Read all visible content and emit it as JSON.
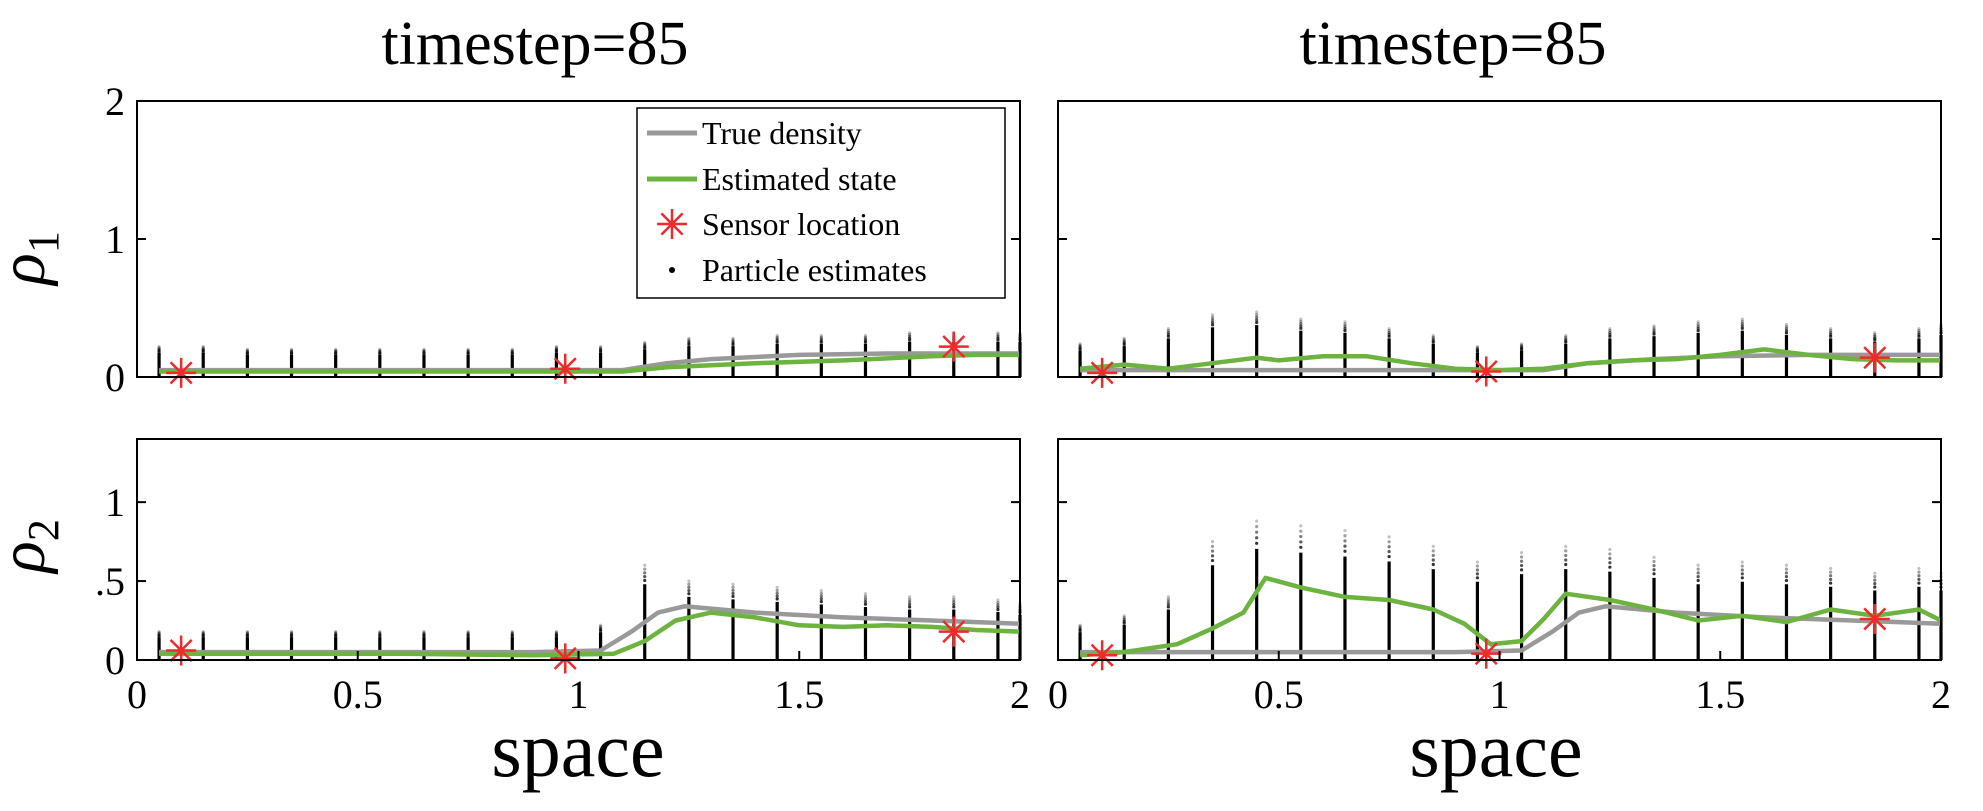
{
  "figure": {
    "col_titles": [
      "timestep=85",
      "timestep=85"
    ],
    "row_labels": [
      {
        "main": "ρ",
        "sub": "1"
      },
      {
        "main": "ρ",
        "sub": "2"
      }
    ],
    "xlabel": "space",
    "legend": {
      "entries": [
        {
          "label": "True density",
          "kind": "line",
          "color": "#999999"
        },
        {
          "label": "Estimated state",
          "kind": "line",
          "color": "#6db33f"
        },
        {
          "label": "Sensor location",
          "kind": "star",
          "color": "#ee2a2a"
        },
        {
          "label": "Particle estimates",
          "kind": "dot",
          "color": "#000000"
        }
      ]
    }
  },
  "chart_data": [
    {
      "type": "line",
      "panel": "top-left",
      "title": "timestep=85",
      "xlabel": "",
      "ylabel": "ρ1",
      "xlim": [
        0,
        2
      ],
      "ylim": [
        0,
        2
      ],
      "xticks": [],
      "yticks": [
        0,
        1,
        2
      ],
      "yticklabels": [
        "0",
        "1",
        "2"
      ],
      "legend_position": "top-right",
      "series": [
        {
          "name": "True density",
          "color": "#999999",
          "x": [
            0.05,
            0.3,
            0.6,
            0.9,
            1.1,
            1.2,
            1.3,
            1.5,
            1.7,
            1.85,
            2.0
          ],
          "y": [
            0.05,
            0.05,
            0.05,
            0.05,
            0.05,
            0.1,
            0.13,
            0.16,
            0.17,
            0.17,
            0.17
          ]
        },
        {
          "name": "Estimated state",
          "color": "#6db33f",
          "x": [
            0.05,
            0.3,
            0.6,
            0.9,
            1.1,
            1.2,
            1.4,
            1.6,
            1.8,
            1.9,
            2.0
          ],
          "y": [
            0.04,
            0.04,
            0.04,
            0.04,
            0.04,
            0.07,
            0.1,
            0.12,
            0.15,
            0.16,
            0.16
          ]
        }
      ],
      "sensors": [
        {
          "x": 0.1,
          "y": 0.03
        },
        {
          "x": 0.97,
          "y": 0.06
        },
        {
          "x": 1.85,
          "y": 0.22
        }
      ],
      "particles": {
        "x": [
          0.05,
          0.15,
          0.25,
          0.35,
          0.45,
          0.55,
          0.65,
          0.75,
          0.85,
          0.95,
          1.05,
          1.15,
          1.25,
          1.35,
          1.45,
          1.55,
          1.65,
          1.75,
          1.85,
          1.95,
          2.0
        ],
        "low": [
          0.0,
          0.0,
          0.0,
          0.0,
          0.0,
          0.0,
          0.0,
          0.0,
          0.0,
          0.0,
          0.0,
          0.0,
          0.0,
          0.0,
          0.0,
          0.0,
          0.0,
          0.0,
          0.0,
          0.0,
          0.0
        ],
        "high": [
          0.22,
          0.22,
          0.2,
          0.2,
          0.2,
          0.2,
          0.2,
          0.2,
          0.2,
          0.22,
          0.22,
          0.25,
          0.28,
          0.28,
          0.3,
          0.3,
          0.3,
          0.32,
          0.32,
          0.32,
          0.32
        ]
      }
    },
    {
      "type": "line",
      "panel": "top-right",
      "title": "timestep=85",
      "xlabel": "",
      "ylabel": "",
      "xlim": [
        0,
        2
      ],
      "ylim": [
        0,
        2
      ],
      "xticks": [],
      "yticks": [
        0,
        1,
        2
      ],
      "yticklabels": [],
      "series": [
        {
          "name": "True density",
          "color": "#999999",
          "x": [
            0.05,
            0.3,
            0.6,
            0.9,
            1.1,
            1.2,
            1.35,
            1.5,
            1.7,
            1.85,
            2.0
          ],
          "y": [
            0.05,
            0.05,
            0.05,
            0.05,
            0.05,
            0.1,
            0.13,
            0.15,
            0.16,
            0.16,
            0.16
          ]
        },
        {
          "name": "Estimated state",
          "color": "#6db33f",
          "x": [
            0.05,
            0.15,
            0.25,
            0.35,
            0.45,
            0.5,
            0.6,
            0.7,
            0.8,
            0.9,
            1.0,
            1.1,
            1.2,
            1.3,
            1.4,
            1.5,
            1.6,
            1.7,
            1.8,
            1.9,
            2.0
          ],
          "y": [
            0.06,
            0.09,
            0.06,
            0.1,
            0.14,
            0.12,
            0.15,
            0.15,
            0.1,
            0.06,
            0.05,
            0.06,
            0.1,
            0.12,
            0.13,
            0.16,
            0.2,
            0.16,
            0.13,
            0.12,
            0.12
          ]
        }
      ],
      "sensors": [
        {
          "x": 0.1,
          "y": 0.03
        },
        {
          "x": 0.97,
          "y": 0.04
        },
        {
          "x": 1.85,
          "y": 0.14
        }
      ],
      "particles": {
        "x": [
          0.05,
          0.15,
          0.25,
          0.35,
          0.45,
          0.55,
          0.65,
          0.75,
          0.85,
          0.95,
          1.05,
          1.15,
          1.25,
          1.35,
          1.45,
          1.55,
          1.65,
          1.75,
          1.85,
          1.95,
          2.0
        ],
        "low": [
          0.0,
          0.0,
          0.0,
          0.0,
          0.0,
          0.0,
          0.0,
          0.0,
          0.0,
          0.0,
          0.0,
          0.0,
          0.0,
          0.0,
          0.0,
          0.0,
          0.0,
          0.0,
          0.0,
          0.0,
          0.0
        ],
        "high": [
          0.24,
          0.28,
          0.35,
          0.45,
          0.47,
          0.42,
          0.4,
          0.35,
          0.3,
          0.22,
          0.24,
          0.3,
          0.35,
          0.37,
          0.4,
          0.42,
          0.38,
          0.35,
          0.32,
          0.35,
          0.38
        ]
      }
    },
    {
      "type": "line",
      "panel": "bottom-left",
      "title": "",
      "xlabel": "space",
      "ylabel": "ρ2",
      "xlim": [
        0,
        2
      ],
      "ylim": [
        0,
        1.4
      ],
      "xticks": [
        0,
        0.5,
        1,
        1.5,
        2
      ],
      "xticklabels": [
        "0",
        "0.5",
        "1",
        "1.5",
        "2"
      ],
      "yticks": [
        0,
        0.5,
        1
      ],
      "yticklabels": [
        "0",
        ".5",
        "1"
      ],
      "series": [
        {
          "name": "True density",
          "color": "#999999",
          "x": [
            0.05,
            0.3,
            0.6,
            0.9,
            1.05,
            1.12,
            1.18,
            1.24,
            1.4,
            1.6,
            1.8,
            2.0
          ],
          "y": [
            0.05,
            0.05,
            0.05,
            0.05,
            0.06,
            0.18,
            0.3,
            0.34,
            0.3,
            0.27,
            0.25,
            0.23
          ]
        },
        {
          "name": "Estimated state",
          "color": "#6db33f",
          "x": [
            0.05,
            0.3,
            0.6,
            0.9,
            1.08,
            1.15,
            1.22,
            1.3,
            1.4,
            1.5,
            1.6,
            1.7,
            1.8,
            1.9,
            2.0
          ],
          "y": [
            0.04,
            0.04,
            0.04,
            0.03,
            0.04,
            0.12,
            0.25,
            0.3,
            0.27,
            0.22,
            0.21,
            0.22,
            0.21,
            0.19,
            0.18
          ]
        }
      ],
      "sensors": [
        {
          "x": 0.1,
          "y": 0.06
        },
        {
          "x": 0.97,
          "y": 0.01
        },
        {
          "x": 1.85,
          "y": 0.18
        }
      ],
      "particles": {
        "x": [
          0.05,
          0.15,
          0.25,
          0.35,
          0.45,
          0.55,
          0.65,
          0.75,
          0.85,
          0.95,
          1.05,
          1.15,
          1.25,
          1.35,
          1.45,
          1.55,
          1.65,
          1.75,
          1.85,
          1.95,
          2.0
        ],
        "low": [
          0.0,
          0.0,
          0.0,
          0.0,
          0.0,
          0.0,
          0.0,
          0.0,
          0.0,
          0.0,
          0.0,
          0.0,
          0.0,
          0.0,
          0.0,
          0.0,
          0.0,
          0.0,
          0.0,
          0.0,
          0.0
        ],
        "high": [
          0.18,
          0.18,
          0.18,
          0.18,
          0.18,
          0.18,
          0.18,
          0.18,
          0.18,
          0.18,
          0.22,
          0.6,
          0.5,
          0.48,
          0.46,
          0.44,
          0.42,
          0.4,
          0.4,
          0.38,
          0.36
        ]
      }
    },
    {
      "type": "line",
      "panel": "bottom-right",
      "title": "",
      "xlabel": "space",
      "ylabel": "",
      "xlim": [
        0,
        2
      ],
      "ylim": [
        0,
        1.4
      ],
      "xticks": [
        0,
        0.5,
        1,
        1.5,
        2
      ],
      "xticklabels": [
        "0",
        "0.5",
        "1",
        "1.5",
        "2"
      ],
      "yticks": [
        0,
        0.5,
        1
      ],
      "yticklabels": [],
      "series": [
        {
          "name": "True density",
          "color": "#999999",
          "x": [
            0.05,
            0.3,
            0.6,
            0.9,
            1.05,
            1.12,
            1.18,
            1.24,
            1.4,
            1.6,
            1.8,
            2.0
          ],
          "y": [
            0.05,
            0.05,
            0.05,
            0.05,
            0.06,
            0.18,
            0.3,
            0.34,
            0.3,
            0.27,
            0.25,
            0.23
          ]
        },
        {
          "name": "Estimated state",
          "color": "#6db33f",
          "x": [
            0.05,
            0.15,
            0.27,
            0.35,
            0.42,
            0.47,
            0.55,
            0.65,
            0.75,
            0.85,
            0.92,
            0.98,
            1.05,
            1.1,
            1.15,
            1.25,
            1.35,
            1.45,
            1.55,
            1.65,
            1.75,
            1.85,
            1.95,
            2.0
          ],
          "y": [
            0.03,
            0.05,
            0.1,
            0.2,
            0.3,
            0.52,
            0.46,
            0.4,
            0.38,
            0.32,
            0.23,
            0.1,
            0.12,
            0.26,
            0.42,
            0.38,
            0.32,
            0.25,
            0.28,
            0.24,
            0.32,
            0.28,
            0.32,
            0.25
          ]
        }
      ],
      "sensors": [
        {
          "x": 0.1,
          "y": 0.03
        },
        {
          "x": 0.97,
          "y": 0.04
        },
        {
          "x": 1.85,
          "y": 0.26
        }
      ],
      "particles": {
        "x": [
          0.05,
          0.15,
          0.25,
          0.35,
          0.45,
          0.55,
          0.65,
          0.75,
          0.85,
          0.95,
          1.05,
          1.15,
          1.25,
          1.35,
          1.45,
          1.55,
          1.65,
          1.75,
          1.85,
          1.95,
          2.0
        ],
        "low": [
          0.0,
          0.0,
          0.0,
          0.0,
          0.0,
          0.0,
          0.0,
          0.0,
          0.0,
          0.0,
          0.0,
          0.0,
          0.0,
          0.0,
          0.0,
          0.0,
          0.0,
          0.0,
          0.0,
          0.0,
          0.0
        ],
        "high": [
          0.22,
          0.28,
          0.4,
          0.75,
          0.88,
          0.85,
          0.82,
          0.78,
          0.72,
          0.62,
          0.68,
          0.72,
          0.7,
          0.65,
          0.6,
          0.62,
          0.6,
          0.58,
          0.55,
          0.58,
          0.55
        ]
      }
    }
  ]
}
